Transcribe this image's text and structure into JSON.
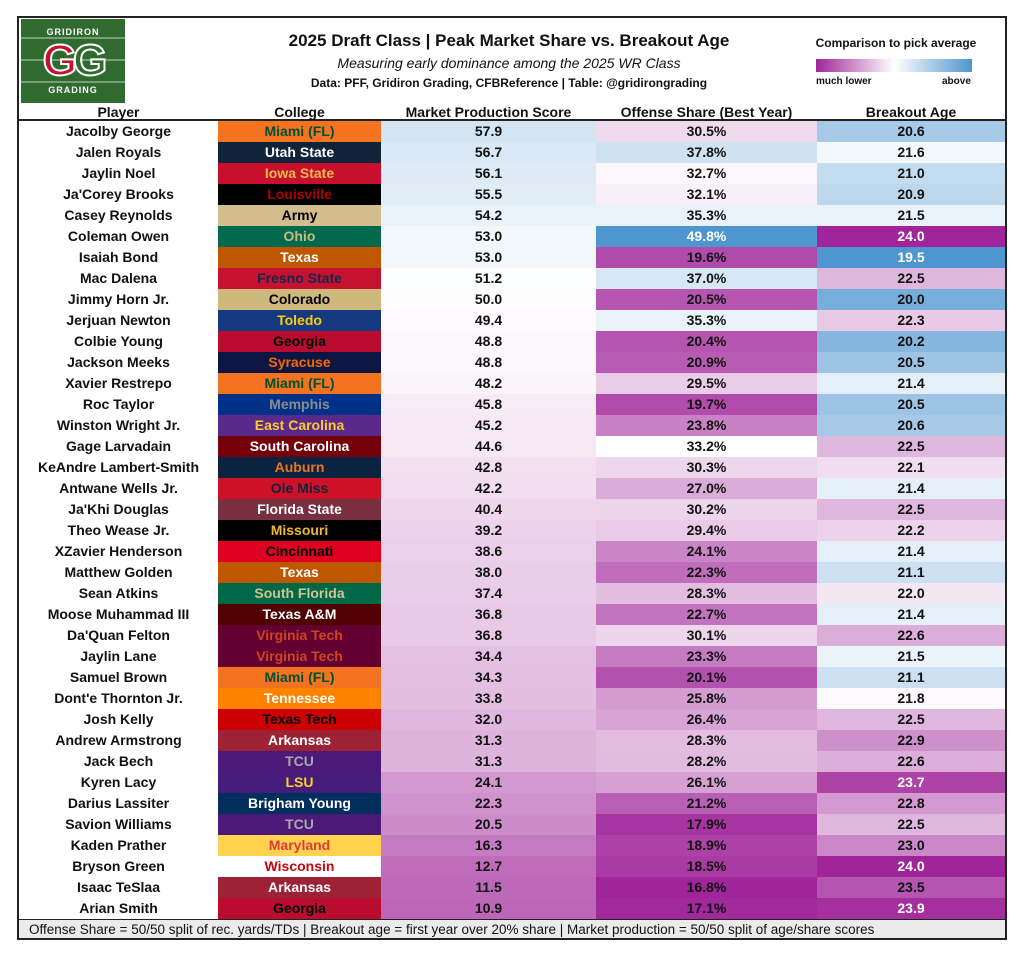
{
  "header": {
    "logo": {
      "top_word": "GRIDIRON",
      "letters": "GG",
      "bottom_word": "GRADING"
    },
    "title": "2025 Draft Class | Peak Market Share vs. Breakout Age",
    "subtitle": "Measuring early dominance among the 2025 WR Class",
    "source": "Data: PFF, Gridiron Grading, CFBReference | Table: @gridirongrading",
    "legend": {
      "title": "Comparison to pick average",
      "low": "much lower",
      "high": "above",
      "low_color": "#a0259a",
      "mid_color": "#ffffff",
      "high_color": "#4f95cf"
    }
  },
  "chart_data": {
    "type": "table",
    "columns": [
      "Player",
      "College",
      "Market Production Score",
      "Offense Share (Best Year)",
      "Breakout Age"
    ],
    "rows": [
      {
        "player": "Jacolby George",
        "college": "Miami (FL)",
        "college_bg": "#f47321",
        "college_fg": "#005030",
        "mps": "57.9",
        "share": "30.5%",
        "age": "20.6"
      },
      {
        "player": "Jalen Royals",
        "college": "Utah State",
        "college_bg": "#0f2439",
        "college_fg": "#ffffff",
        "mps": "56.7",
        "share": "37.8%",
        "age": "21.6"
      },
      {
        "player": "Jaylin Noel",
        "college": "Iowa State",
        "college_bg": "#c8102e",
        "college_fg": "#f1be48",
        "mps": "56.1",
        "share": "32.7%",
        "age": "21.0"
      },
      {
        "player": "Ja'Corey Brooks",
        "college": "Louisville",
        "college_bg": "#000000",
        "college_fg": "#ad0000",
        "mps": "55.5",
        "share": "32.1%",
        "age": "20.9"
      },
      {
        "player": "Casey Reynolds",
        "college": "Army",
        "college_bg": "#d3bc8d",
        "college_fg": "#000000",
        "mps": "54.2",
        "share": "35.3%",
        "age": "21.5"
      },
      {
        "player": "Coleman Owen",
        "college": "Ohio",
        "college_bg": "#00694e",
        "college_fg": "#cdb87d",
        "mps": "53.0",
        "share": "49.8%",
        "age": "24.0"
      },
      {
        "player": "Isaiah Bond",
        "college": "Texas",
        "college_bg": "#bf5700",
        "college_fg": "#ffffff",
        "mps": "53.0",
        "share": "19.6%",
        "age": "19.5"
      },
      {
        "player": "Mac Dalena",
        "college": "Fresno State",
        "college_bg": "#c41230",
        "college_fg": "#13284c",
        "mps": "51.2",
        "share": "37.0%",
        "age": "22.5"
      },
      {
        "player": "Jimmy Horn Jr.",
        "college": "Colorado",
        "college_bg": "#cfb87c",
        "college_fg": "#000000",
        "mps": "50.0",
        "share": "20.5%",
        "age": "20.0"
      },
      {
        "player": "Jerjuan Newton",
        "college": "Toledo",
        "college_bg": "#15397f",
        "college_fg": "#ffcc00",
        "mps": "49.4",
        "share": "35.3%",
        "age": "22.3"
      },
      {
        "player": "Colbie Young",
        "college": "Georgia",
        "college_bg": "#ba0c2f",
        "college_fg": "#000000",
        "mps": "48.8",
        "share": "20.4%",
        "age": "20.2"
      },
      {
        "player": "Jackson Meeks",
        "college": "Syracuse",
        "college_bg": "#0d1642",
        "college_fg": "#f76900",
        "mps": "48.8",
        "share": "20.9%",
        "age": "20.5"
      },
      {
        "player": "Xavier Restrepo",
        "college": "Miami (FL)",
        "college_bg": "#f47321",
        "college_fg": "#005030",
        "mps": "48.2",
        "share": "29.5%",
        "age": "21.4"
      },
      {
        "player": "Roc Taylor",
        "college": "Memphis",
        "college_bg": "#003087",
        "college_fg": "#898d8d",
        "mps": "45.8",
        "share": "19.7%",
        "age": "20.5"
      },
      {
        "player": "Winston Wright Jr.",
        "college": "East Carolina",
        "college_bg": "#592a8a",
        "college_fg": "#fdc82f",
        "mps": "45.2",
        "share": "23.8%",
        "age": "20.6"
      },
      {
        "player": "Gage Larvadain",
        "college": "South Carolina",
        "college_bg": "#73000a",
        "college_fg": "#ffffff",
        "mps": "44.6",
        "share": "33.2%",
        "age": "22.5"
      },
      {
        "player": "KeAndre Lambert-Smith",
        "college": "Auburn",
        "college_bg": "#0c2340",
        "college_fg": "#e87722",
        "mps": "42.8",
        "share": "30.3%",
        "age": "22.1"
      },
      {
        "player": "Antwane Wells Jr.",
        "college": "Ole Miss",
        "college_bg": "#ce1126",
        "college_fg": "#14213d",
        "mps": "42.2",
        "share": "27.0%",
        "age": "21.4"
      },
      {
        "player": "Ja'Khi Douglas",
        "college": "Florida State",
        "college_bg": "#782f40",
        "college_fg": "#ffffff",
        "mps": "40.4",
        "share": "30.2%",
        "age": "22.5"
      },
      {
        "player": "Theo Wease Jr.",
        "college": "Missouri",
        "college_bg": "#000000",
        "college_fg": "#f1b82d",
        "mps": "39.2",
        "share": "29.4%",
        "age": "22.2"
      },
      {
        "player": "XZavier Henderson",
        "college": "Cincinnati",
        "college_bg": "#e00122",
        "college_fg": "#000000",
        "mps": "38.6",
        "share": "24.1%",
        "age": "21.4"
      },
      {
        "player": "Matthew Golden",
        "college": "Texas",
        "college_bg": "#bf5700",
        "college_fg": "#ffffff",
        "mps": "38.0",
        "share": "22.3%",
        "age": "21.1"
      },
      {
        "player": "Sean Atkins",
        "college": "South Florida",
        "college_bg": "#006747",
        "college_fg": "#cfc493",
        "mps": "37.4",
        "share": "28.3%",
        "age": "22.0"
      },
      {
        "player": "Moose Muhammad III",
        "college": "Texas A&M",
        "college_bg": "#500000",
        "college_fg": "#ffffff",
        "mps": "36.8",
        "share": "22.7%",
        "age": "21.4"
      },
      {
        "player": "Da'Quan Felton",
        "college": "Virginia Tech",
        "college_bg": "#630031",
        "college_fg": "#cf4420",
        "mps": "36.8",
        "share": "30.1%",
        "age": "22.6"
      },
      {
        "player": "Jaylin Lane",
        "college": "Virginia Tech",
        "college_bg": "#630031",
        "college_fg": "#cf4420",
        "mps": "34.4",
        "share": "23.3%",
        "age": "21.5"
      },
      {
        "player": "Samuel Brown",
        "college": "Miami (FL)",
        "college_bg": "#f47321",
        "college_fg": "#005030",
        "mps": "34.3",
        "share": "20.1%",
        "age": "21.1"
      },
      {
        "player": "Dont'e Thornton Jr.",
        "college": "Tennessee",
        "college_bg": "#ff8200",
        "college_fg": "#ffffff",
        "mps": "33.8",
        "share": "25.8%",
        "age": "21.8"
      },
      {
        "player": "Josh Kelly",
        "college": "Texas Tech",
        "college_bg": "#cc0000",
        "college_fg": "#000000",
        "mps": "32.0",
        "share": "26.4%",
        "age": "22.5"
      },
      {
        "player": "Andrew Armstrong",
        "college": "Arkansas",
        "college_bg": "#9d2235",
        "college_fg": "#ffffff",
        "mps": "31.3",
        "share": "28.3%",
        "age": "22.9"
      },
      {
        "player": "Jack Bech",
        "college": "TCU",
        "college_bg": "#4d1979",
        "college_fg": "#a3a9ac",
        "mps": "31.3",
        "share": "28.2%",
        "age": "22.6"
      },
      {
        "player": "Kyren Lacy",
        "college": "LSU",
        "college_bg": "#461d7c",
        "college_fg": "#fdd023",
        "mps": "24.1",
        "share": "26.1%",
        "age": "23.7"
      },
      {
        "player": "Darius Lassiter",
        "college": "Brigham Young",
        "college_bg": "#002e5d",
        "college_fg": "#ffffff",
        "mps": "22.3",
        "share": "21.2%",
        "age": "22.8"
      },
      {
        "player": "Savion Williams",
        "college": "TCU",
        "college_bg": "#4d1979",
        "college_fg": "#a3a9ac",
        "mps": "20.5",
        "share": "17.9%",
        "age": "22.5"
      },
      {
        "player": "Kaden Prather",
        "college": "Maryland",
        "college_bg": "#ffd24f",
        "college_fg": "#e03a3e",
        "mps": "16.3",
        "share": "18.9%",
        "age": "23.0"
      },
      {
        "player": "Bryson Green",
        "college": "Wisconsin",
        "college_bg": "#ffffff",
        "college_fg": "#c5050c",
        "mps": "12.7",
        "share": "18.5%",
        "age": "24.0"
      },
      {
        "player": "Isaac TeSlaa",
        "college": "Arkansas",
        "college_bg": "#9d2235",
        "college_fg": "#ffffff",
        "mps": "11.5",
        "share": "16.8%",
        "age": "23.5"
      },
      {
        "player": "Arian Smith",
        "college": "Georgia",
        "college_bg": "#ba0c2f",
        "college_fg": "#000000",
        "mps": "10.9",
        "share": "17.1%",
        "age": "23.9"
      }
    ]
  },
  "footer": "Offense Share = 50/50 split of rec. yards/TDs | Breakout age = first year over 20% share | Market production = 50/50 split of age/share scores"
}
